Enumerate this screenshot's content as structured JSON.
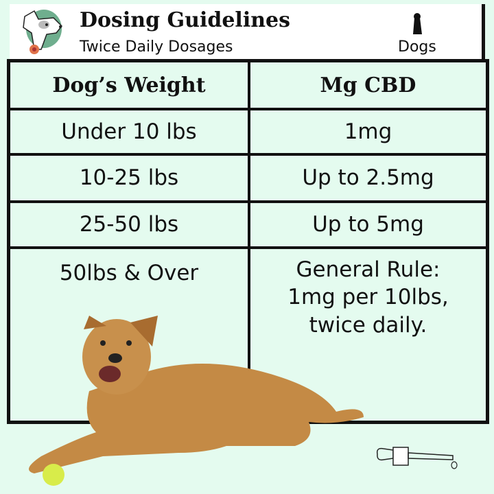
{
  "header": {
    "title": "Dosing Guidelines",
    "subtitle": "Twice Daily Dosages",
    "species": "Dogs",
    "logo_icon": "cartoon-dog-logo",
    "species_icon": "dog-silhouette-icon"
  },
  "table": {
    "columns": [
      "Dog’s Weight",
      "Mg CBD"
    ],
    "rows": [
      [
        "Under 10 lbs",
        "1mg"
      ],
      [
        "10-25 lbs",
        "Up to 2.5mg"
      ],
      [
        "25-50 lbs",
        "Up to 5mg"
      ],
      [
        "50lbs & Over",
        "General Rule: 1mg per 10lbs, twice daily."
      ]
    ]
  },
  "colors": {
    "background": "#e4fbef",
    "border": "#111111",
    "logo_circle": "#6fae8e"
  }
}
